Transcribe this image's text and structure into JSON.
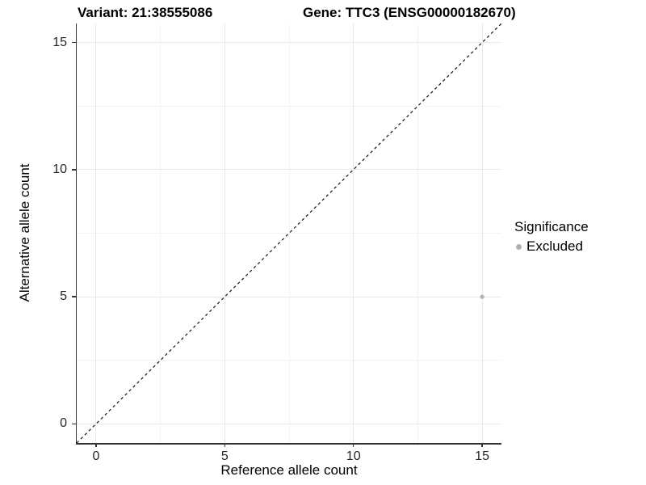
{
  "chart_data": {
    "type": "scatter",
    "titles": {
      "variant": "Variant: 21:38555086",
      "gene": "Gene: TTC3 (ENSG00000182670)"
    },
    "xlabel": "Reference allele count",
    "ylabel": "Alternative allele count",
    "xlim": [
      -0.75,
      15.75
    ],
    "ylim": [
      -0.75,
      15.75
    ],
    "xticks": [
      0,
      5,
      10,
      15
    ],
    "yticks": [
      0,
      5,
      10,
      15
    ],
    "xticks_minor": [
      2.5,
      7.5,
      12.5
    ],
    "yticks_minor": [
      2.5,
      7.5,
      12.5
    ],
    "grid": true,
    "series": [
      {
        "name": "Excluded",
        "color": "#b0b0b0",
        "points": [
          {
            "x": 15,
            "y": 5
          }
        ]
      }
    ],
    "reference_line": {
      "type": "identity",
      "x1": -0.75,
      "y1": -0.75,
      "x2": 15.75,
      "y2": 15.75,
      "style": "dashed",
      "color": "#111111"
    },
    "legend": {
      "title": "Significance",
      "position": "right",
      "items": [
        {
          "label": "Excluded",
          "color": "#b0b0b0"
        }
      ]
    },
    "colors": {
      "grid_major": "#e8e8e8",
      "grid_minor": "#f3f3f3",
      "axis_line": "#333333",
      "tick_label": "#262626",
      "text": "#000000",
      "background": "#ffffff"
    }
  }
}
